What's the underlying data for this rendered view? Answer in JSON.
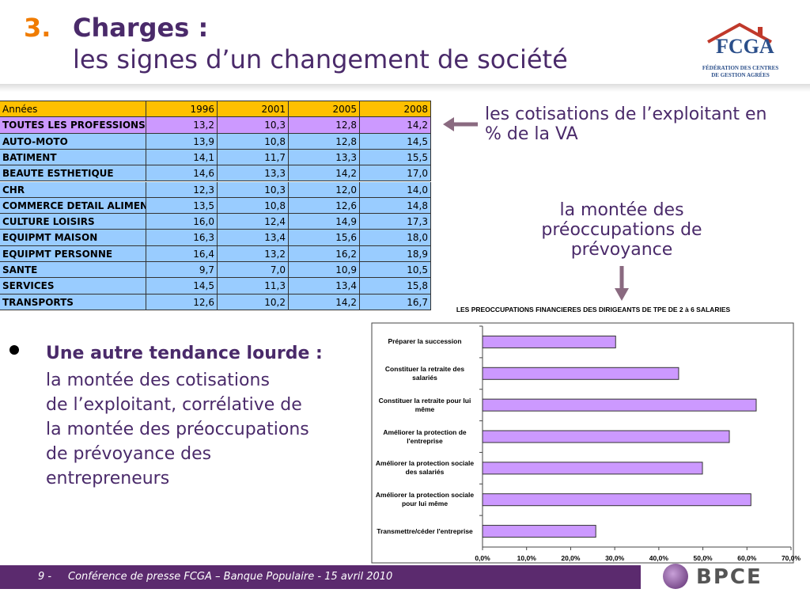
{
  "header": {
    "number": "3.",
    "title": "Charges :",
    "subtitle": "les signes d’un changement de société"
  },
  "logo": {
    "name": "FCGA",
    "line1": "FÉDÉRATION DES CENTRES",
    "line2": "DE GESTION AGRÉES"
  },
  "table": {
    "header": [
      "Années",
      "1996",
      "2001",
      "2005",
      "2008"
    ],
    "rows": [
      [
        "TOUTES LES PROFESSIONS",
        "13,2",
        "10,3",
        "12,8",
        "14,2"
      ],
      [
        "AUTO-MOTO",
        "13,9",
        "10,8",
        "12,8",
        "14,5"
      ],
      [
        "BATIMENT",
        "14,1",
        "11,7",
        "13,3",
        "15,5"
      ],
      [
        "BEAUTE ESTHETIQUE",
        "14,6",
        "13,3",
        "14,2",
        "17,0"
      ],
      [
        "CHR",
        "12,3",
        "10,3",
        "12,0",
        "14,0"
      ],
      [
        "COMMERCE DETAIL ALIMENT",
        "13,5",
        "10,8",
        "12,6",
        "14,8"
      ],
      [
        "CULTURE LOISIRS",
        "16,0",
        "12,4",
        "14,9",
        "17,3"
      ],
      [
        "EQUIPMT MAISON",
        "16,3",
        "13,4",
        "15,6",
        "18,0"
      ],
      [
        "EQUIPMT PERSONNE",
        "16,4",
        "13,2",
        "16,2",
        "18,9"
      ],
      [
        "SANTE",
        "9,7",
        "7,0",
        "10,9",
        "10,5"
      ],
      [
        "SERVICES",
        "14,5",
        "11,3",
        "13,4",
        "15,8"
      ],
      [
        "TRANSPORTS",
        "12,6",
        "10,2",
        "14,2",
        "16,7"
      ]
    ]
  },
  "annotations": [
    "les cotisations de l’exploitant en % de la VA",
    "la montée des préoccupations de prévoyance"
  ],
  "bullet": {
    "heading": "Une autre tendance lourde :",
    "lines": [
      "la montée des cotisations",
      "de l’exploitant, corrélative de",
      "la montée des préoccupations",
      "de prévoyance des",
      "entrepreneurs"
    ]
  },
  "chart_data": {
    "type": "bar",
    "orientation": "horizontal",
    "title": "LES PREOCCUPATIONS FINANCIERES DES DIRIGEANTS DE TPE DE 2 à 6 SALARIES",
    "categories": [
      "Préparer la succession",
      "Constituer la retraite des salariés",
      "Constituer la retraite pour lui même",
      "Améliorer la protection de l'entreprise",
      "Améliorer la protection sociale des salariés",
      "Améliorer la protection sociale pour lui même",
      "Transmettre/céder l'entreprise"
    ],
    "values": [
      30.2,
      44.5,
      62.1,
      56.0,
      49.9,
      60.9,
      25.7
    ],
    "color": "#cc99ff",
    "xlim": [
      0,
      70
    ],
    "xticks": [
      {
        "value": 0,
        "label": "0,0%"
      },
      {
        "value": 10,
        "label": "10,0%"
      },
      {
        "value": 20,
        "label": "20,0%"
      },
      {
        "value": 30,
        "label": "30,0%"
      },
      {
        "value": 40,
        "label": "40,0%"
      },
      {
        "value": 50,
        "label": "50,0%"
      },
      {
        "value": 60,
        "label": "60,0%"
      },
      {
        "value": 70,
        "label": "70,0%"
      }
    ]
  },
  "footer": {
    "page": "9 -",
    "text": "Conférence de presse FCGA – Banque Populaire  - 15 avril 2010",
    "brand": "BPCE"
  }
}
